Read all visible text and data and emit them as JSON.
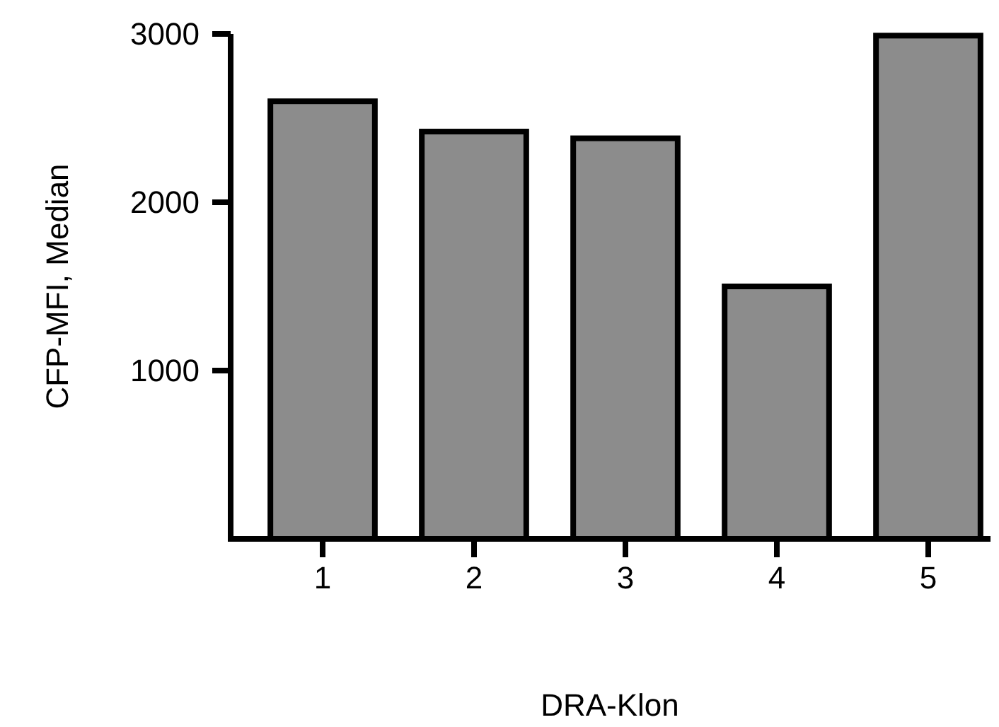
{
  "chart_data": {
    "type": "bar",
    "xlabel": "DRA-Klon",
    "ylabel": "CFP-MFI, Median",
    "categories": [
      "1",
      "2",
      "3",
      "4",
      "5"
    ],
    "values": [
      2600,
      2420,
      2380,
      1500,
      2990
    ],
    "color": "#8c8c8c",
    "ylim": [
      0,
      3000
    ],
    "yticks": [
      1000,
      2000,
      3000
    ],
    "grid": false
  }
}
